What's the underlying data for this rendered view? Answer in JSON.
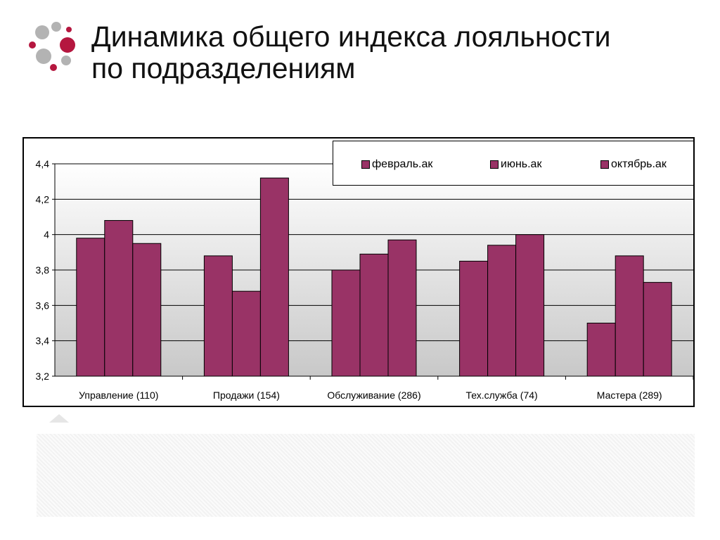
{
  "slide": {
    "title_line1": "Динамика общего индекса лояльности",
    "title_line2": "по подразделениям",
    "logo_icon": "dots-logo-icon"
  },
  "colors": {
    "bar": "#993366",
    "logo_red": "#b5173f",
    "logo_gray": "#b3b3b3"
  },
  "legend": {
    "items": [
      "февраль.ак",
      "июнь.ак",
      "октябрь.ак"
    ]
  },
  "chart_data": {
    "type": "bar",
    "title": "Динамика общего индекса лояльности по подразделениям",
    "xlabel": "",
    "ylabel": "",
    "ylim": [
      3.2,
      4.4
    ],
    "yticks": [
      "3,2",
      "3,4",
      "3,6",
      "3,8",
      "4",
      "4,2",
      "4,4"
    ],
    "grid": true,
    "legend_position": "top-right",
    "categories": [
      "Управление (110)",
      "Продажи (154)",
      "Обслуживание (286)",
      "Тех.служба (74)",
      "Мастера (289)"
    ],
    "series": [
      {
        "name": "февраль.ак",
        "values": [
          3.98,
          3.88,
          3.8,
          3.85,
          3.5
        ]
      },
      {
        "name": "июнь.ак",
        "values": [
          4.08,
          3.68,
          3.89,
          3.94,
          3.88
        ]
      },
      {
        "name": "октябрь.ак",
        "values": [
          3.95,
          4.32,
          3.97,
          4.0,
          3.73
        ]
      }
    ]
  }
}
